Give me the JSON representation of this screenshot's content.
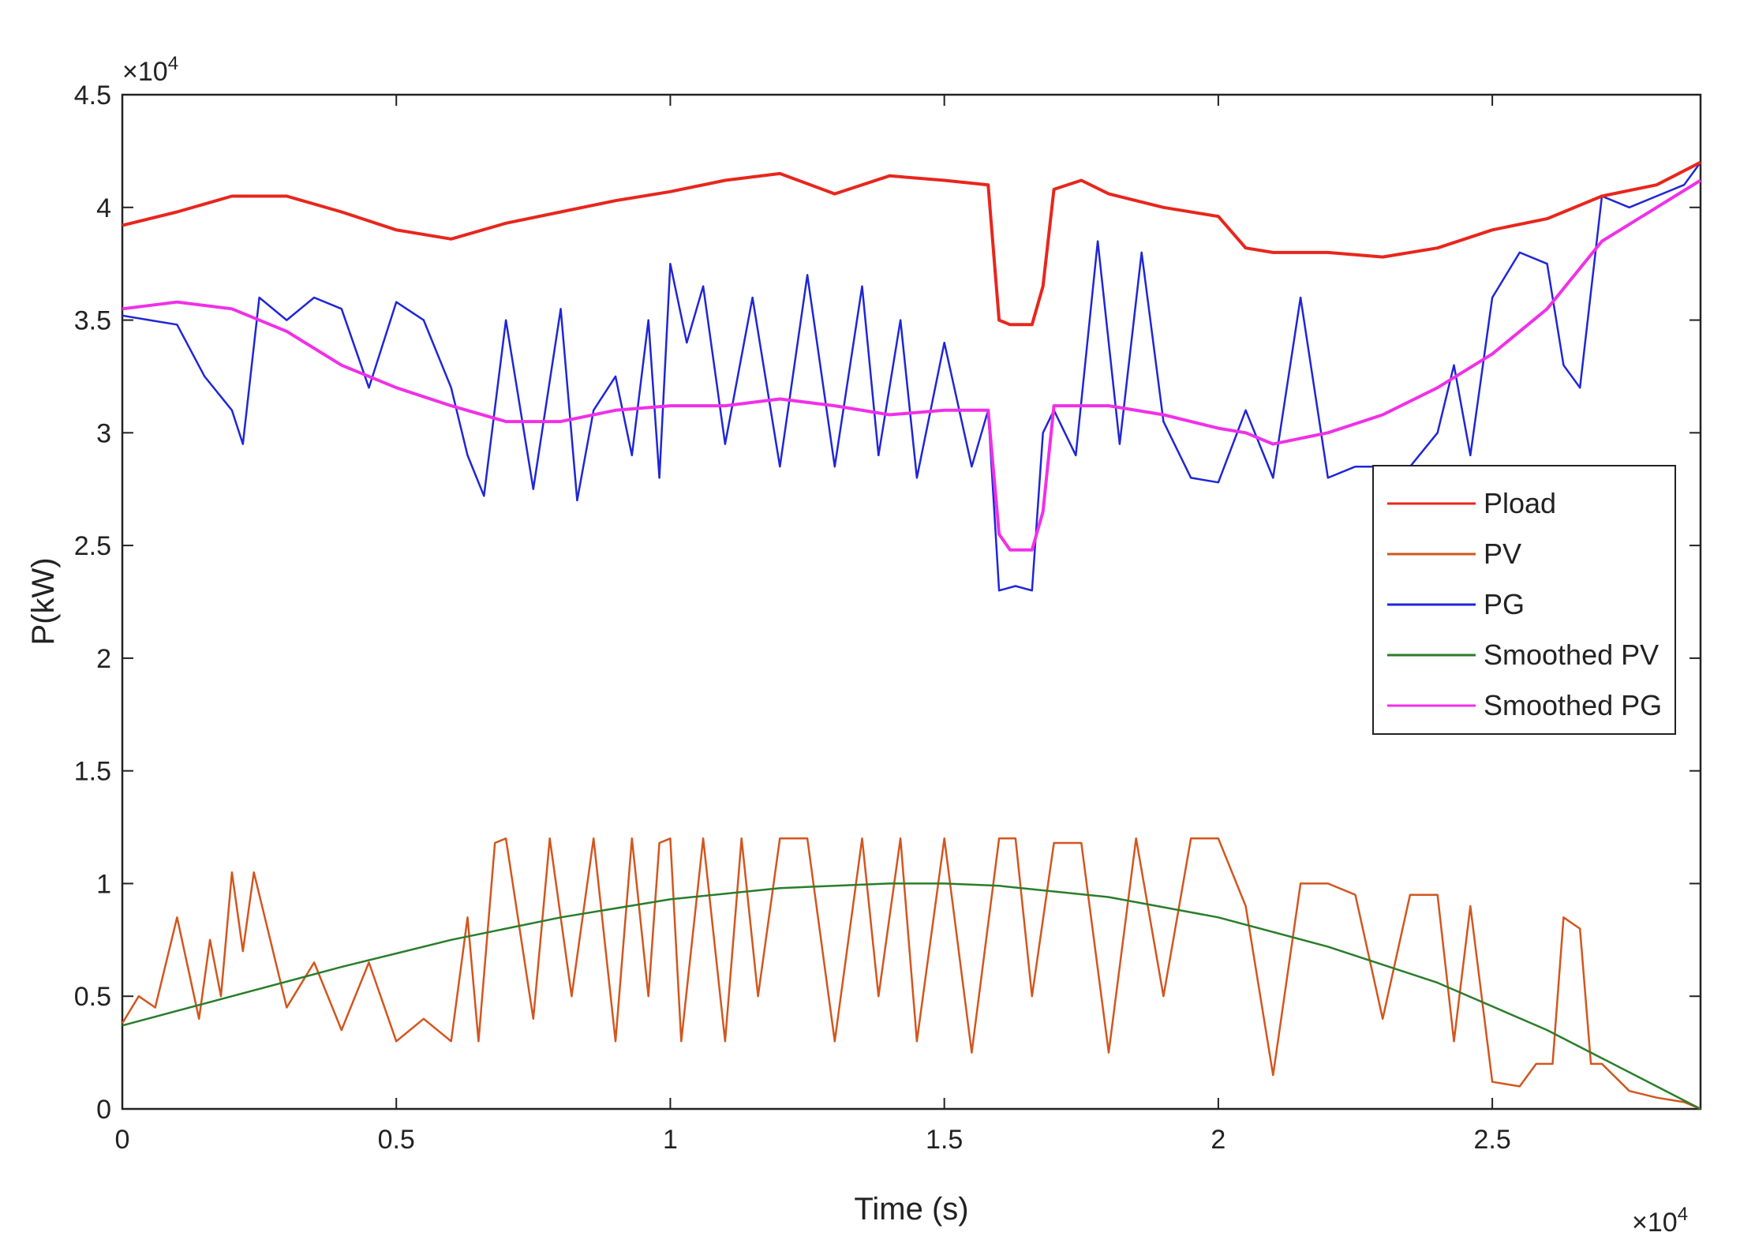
{
  "chart_data": {
    "type": "line",
    "title": "",
    "xlabel": "Time (s)",
    "ylabel": "P(kW)",
    "x_multiplier_label": "×10",
    "x_multiplier_exp": "4",
    "y_multiplier_label": "×10",
    "y_multiplier_exp": "4",
    "xlim": [
      0,
      2.88
    ],
    "ylim": [
      0,
      4.5
    ],
    "xticks": [
      0,
      0.5,
      1,
      1.5,
      2,
      2.5
    ],
    "xtick_labels": [
      "0",
      "0.5",
      "1",
      "1.5",
      "2",
      "2.5"
    ],
    "yticks": [
      0,
      0.5,
      1,
      1.5,
      2,
      2.5,
      3,
      3.5,
      4,
      4.5
    ],
    "ytick_labels": [
      "0",
      "0.5",
      "1",
      "1.5",
      "2",
      "2.5",
      "3",
      "3.5",
      "4",
      "4.5"
    ],
    "grid": false,
    "legend_position": "right",
    "series": [
      {
        "name": "Pload",
        "color": "#e8261c",
        "x": [
          0,
          0.1,
          0.2,
          0.3,
          0.4,
          0.5,
          0.6,
          0.7,
          0.8,
          0.9,
          1.0,
          1.1,
          1.2,
          1.3,
          1.4,
          1.5,
          1.58,
          1.6,
          1.62,
          1.66,
          1.68,
          1.7,
          1.75,
          1.8,
          1.9,
          2.0,
          2.05,
          2.1,
          2.2,
          2.3,
          2.4,
          2.5,
          2.6,
          2.7,
          2.8,
          2.88
        ],
        "values": [
          3.92,
          3.98,
          4.05,
          4.05,
          3.98,
          3.9,
          3.86,
          3.93,
          3.98,
          4.03,
          4.07,
          4.12,
          4.15,
          4.06,
          4.14,
          4.12,
          4.1,
          3.5,
          3.48,
          3.48,
          3.65,
          4.08,
          4.12,
          4.06,
          4.0,
          3.96,
          3.82,
          3.8,
          3.8,
          3.78,
          3.82,
          3.9,
          3.95,
          4.05,
          4.1,
          4.2
        ]
      },
      {
        "name": "PV",
        "color": "#d2561e",
        "x": [
          0,
          0.03,
          0.06,
          0.1,
          0.14,
          0.16,
          0.18,
          0.2,
          0.22,
          0.24,
          0.27,
          0.3,
          0.35,
          0.4,
          0.45,
          0.5,
          0.55,
          0.6,
          0.63,
          0.65,
          0.68,
          0.7,
          0.75,
          0.78,
          0.82,
          0.86,
          0.9,
          0.93,
          0.96,
          0.98,
          1.0,
          1.02,
          1.06,
          1.1,
          1.13,
          1.16,
          1.2,
          1.25,
          1.3,
          1.35,
          1.38,
          1.42,
          1.45,
          1.5,
          1.55,
          1.6,
          1.63,
          1.66,
          1.7,
          1.75,
          1.8,
          1.85,
          1.9,
          1.95,
          2.0,
          2.05,
          2.1,
          2.15,
          2.2,
          2.25,
          2.3,
          2.35,
          2.4,
          2.43,
          2.46,
          2.5,
          2.55,
          2.58,
          2.61,
          2.63,
          2.66,
          2.68,
          2.7,
          2.75,
          2.8,
          2.85,
          2.88
        ],
        "values": [
          0.38,
          0.5,
          0.45,
          0.85,
          0.4,
          0.75,
          0.5,
          1.05,
          0.7,
          1.05,
          0.75,
          0.45,
          0.65,
          0.35,
          0.65,
          0.3,
          0.4,
          0.3,
          0.85,
          0.3,
          1.18,
          1.2,
          0.4,
          1.2,
          0.5,
          1.2,
          0.3,
          1.2,
          0.5,
          1.18,
          1.2,
          0.3,
          1.2,
          0.3,
          1.2,
          0.5,
          1.2,
          1.2,
          0.3,
          1.2,
          0.5,
          1.2,
          0.3,
          1.2,
          0.25,
          1.2,
          1.2,
          0.5,
          1.18,
          1.18,
          0.25,
          1.2,
          0.5,
          1.2,
          1.2,
          0.9,
          0.15,
          1.0,
          1.0,
          0.95,
          0.4,
          0.95,
          0.95,
          0.3,
          0.9,
          0.12,
          0.1,
          0.2,
          0.2,
          0.85,
          0.8,
          0.2,
          0.2,
          0.08,
          0.05,
          0.03,
          0.0
        ]
      },
      {
        "name": "PG",
        "color": "#1f26d6",
        "x": [
          0,
          0.05,
          0.1,
          0.15,
          0.2,
          0.22,
          0.25,
          0.3,
          0.35,
          0.4,
          0.45,
          0.5,
          0.55,
          0.6,
          0.63,
          0.66,
          0.7,
          0.75,
          0.8,
          0.83,
          0.86,
          0.9,
          0.93,
          0.96,
          0.98,
          1.0,
          1.03,
          1.06,
          1.1,
          1.15,
          1.2,
          1.25,
          1.3,
          1.35,
          1.38,
          1.42,
          1.45,
          1.5,
          1.55,
          1.58,
          1.6,
          1.63,
          1.66,
          1.68,
          1.7,
          1.74,
          1.78,
          1.82,
          1.86,
          1.9,
          1.95,
          2.0,
          2.05,
          2.1,
          2.15,
          2.2,
          2.25,
          2.3,
          2.35,
          2.4,
          2.43,
          2.46,
          2.5,
          2.55,
          2.6,
          2.63,
          2.66,
          2.7,
          2.75,
          2.8,
          2.85,
          2.88
        ],
        "values": [
          3.52,
          3.5,
          3.48,
          3.25,
          3.1,
          2.95,
          3.6,
          3.5,
          3.6,
          3.55,
          3.2,
          3.58,
          3.5,
          3.2,
          2.9,
          2.72,
          3.5,
          2.75,
          3.55,
          2.7,
          3.1,
          3.25,
          2.9,
          3.5,
          2.8,
          3.75,
          3.4,
          3.65,
          2.95,
          3.6,
          2.85,
          3.7,
          2.85,
          3.65,
          2.9,
          3.5,
          2.8,
          3.4,
          2.85,
          3.1,
          2.3,
          2.32,
          2.3,
          3.0,
          3.1,
          2.9,
          3.85,
          2.95,
          3.8,
          3.05,
          2.8,
          2.78,
          3.1,
          2.8,
          3.6,
          2.8,
          2.85,
          2.85,
          2.85,
          3.0,
          3.3,
          2.9,
          3.6,
          3.8,
          3.75,
          3.3,
          3.2,
          4.05,
          4.0,
          4.05,
          4.1,
          4.2
        ]
      },
      {
        "name": "Smoothed PV",
        "color": "#2a7d2a",
        "x": [
          0,
          0.2,
          0.4,
          0.6,
          0.8,
          1.0,
          1.2,
          1.4,
          1.5,
          1.6,
          1.8,
          2.0,
          2.2,
          2.4,
          2.6,
          2.8,
          2.88
        ],
        "values": [
          0.37,
          0.5,
          0.63,
          0.75,
          0.85,
          0.93,
          0.98,
          1.0,
          1.0,
          0.99,
          0.94,
          0.85,
          0.72,
          0.56,
          0.35,
          0.1,
          0.0
        ]
      },
      {
        "name": "Smoothed PG",
        "color": "#f030e8",
        "x": [
          0,
          0.1,
          0.2,
          0.3,
          0.4,
          0.5,
          0.6,
          0.7,
          0.8,
          0.9,
          1.0,
          1.1,
          1.2,
          1.3,
          1.4,
          1.5,
          1.58,
          1.6,
          1.62,
          1.66,
          1.68,
          1.7,
          1.8,
          1.9,
          2.0,
          2.05,
          2.1,
          2.2,
          2.3,
          2.4,
          2.5,
          2.6,
          2.7,
          2.8,
          2.88
        ],
        "values": [
          3.55,
          3.58,
          3.55,
          3.45,
          3.3,
          3.2,
          3.12,
          3.05,
          3.05,
          3.1,
          3.12,
          3.12,
          3.15,
          3.12,
          3.08,
          3.1,
          3.1,
          2.55,
          2.48,
          2.48,
          2.65,
          3.12,
          3.12,
          3.08,
          3.02,
          3.0,
          2.95,
          3.0,
          3.08,
          3.2,
          3.35,
          3.55,
          3.85,
          4.0,
          4.12
        ]
      }
    ]
  }
}
